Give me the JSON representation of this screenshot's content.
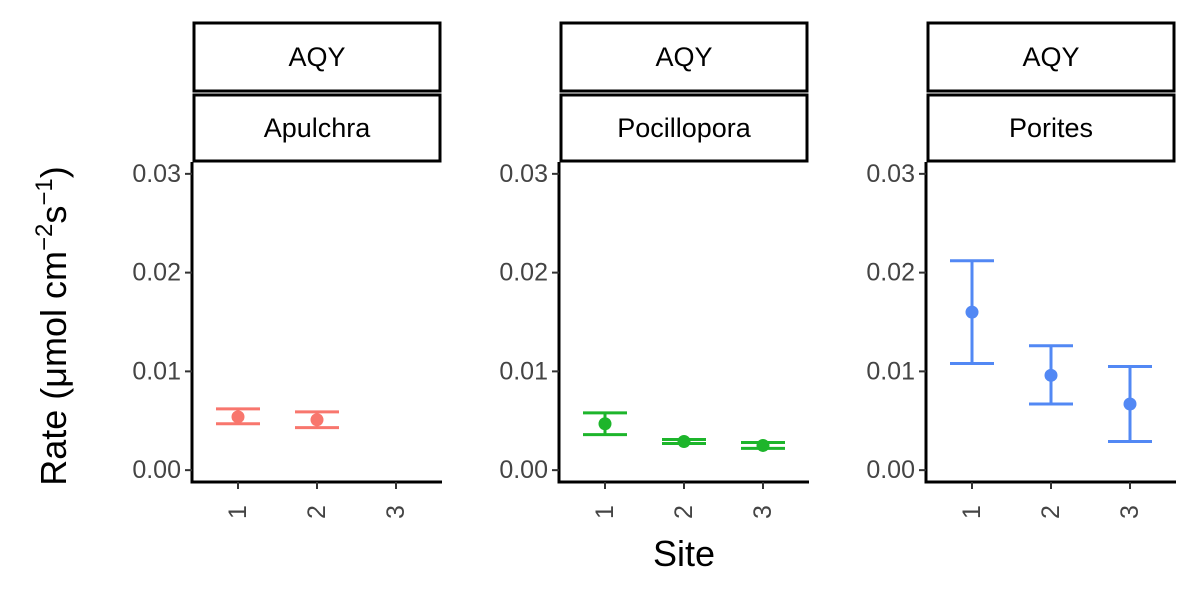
{
  "chart_data": {
    "type": "scatter",
    "title": "",
    "xlabel": "Site",
    "ylabel": {
      "prefix": "Rate (",
      "mu": "μ",
      "unit_a": "mol cm",
      "exp_a": "−2",
      "unit_b": "s",
      "exp_b": "−1",
      "suffix": ")"
    },
    "categories": [
      "1",
      "2",
      "3"
    ],
    "y_ticks": [
      "0.00",
      "0.01",
      "0.02",
      "0.03"
    ],
    "ylim": [
      -0.0012,
      0.0312
    ],
    "grid": false,
    "legend": "none",
    "panels": [
      {
        "strip_top": "AQY",
        "strip_bottom": "Apulchra",
        "color": "#F8766D",
        "points": [
          {
            "x": "1",
            "y": 0.0054,
            "ymin": 0.0047,
            "ymax": 0.0062
          },
          {
            "x": "2",
            "y": 0.0051,
            "ymin": 0.0043,
            "ymax": 0.0059
          }
        ]
      },
      {
        "strip_top": "AQY",
        "strip_bottom": "Pocillopora",
        "color": "#1DB52B",
        "points": [
          {
            "x": "1",
            "y": 0.0047,
            "ymin": 0.0036,
            "ymax": 0.0058
          },
          {
            "x": "2",
            "y": 0.0029,
            "ymin": 0.0027,
            "ymax": 0.0031
          },
          {
            "x": "3",
            "y": 0.0025,
            "ymin": 0.0022,
            "ymax": 0.0028
          }
        ]
      },
      {
        "strip_top": "AQY",
        "strip_bottom": "Porites",
        "color": "#5288F4",
        "points": [
          {
            "x": "1",
            "y": 0.016,
            "ymin": 0.0108,
            "ymax": 0.0212
          },
          {
            "x": "2",
            "y": 0.0096,
            "ymin": 0.0067,
            "ymax": 0.0126
          },
          {
            "x": "3",
            "y": 0.0067,
            "ymin": 0.0029,
            "ymax": 0.0105
          }
        ]
      }
    ]
  }
}
